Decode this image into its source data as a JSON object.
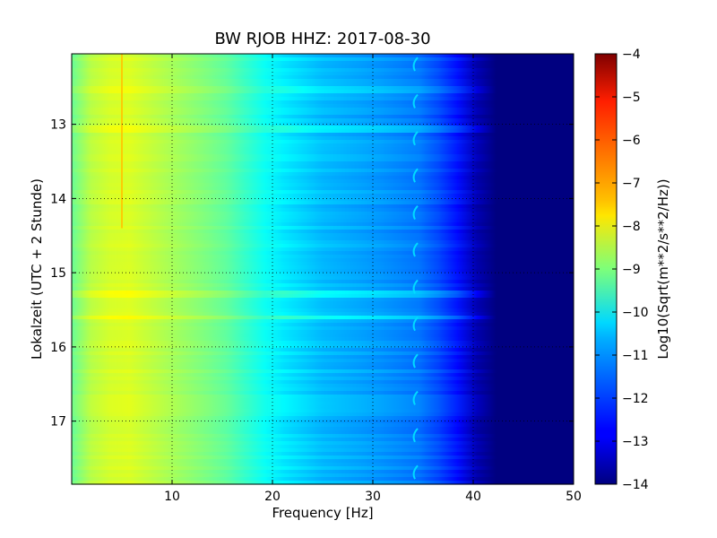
{
  "chart_data": {
    "type": "heatmap",
    "title": "BW RJOB HHZ: 2017-08-30",
    "xlabel": "Frequency [Hz]",
    "ylabel": "Lokalzeit (UTC + 2 Stunde)",
    "xlim": [
      0,
      50
    ],
    "ylim": [
      12.05,
      17.85
    ],
    "y_inverted": true,
    "x_ticks": [
      10,
      20,
      30,
      40,
      50
    ],
    "y_ticks": [
      13,
      14,
      15,
      16,
      17
    ],
    "grid": true,
    "colormap": "jet",
    "colorbar": {
      "label": "Log10(Sqrt(m**2/s**2/Hz))",
      "range": [
        -14,
        -4
      ],
      "ticks": [
        -4,
        -5,
        -6,
        -7,
        -8,
        -9,
        -10,
        -11,
        -12,
        -13,
        -14
      ]
    },
    "psd_profile": {
      "frequency_hz": [
        0,
        2,
        5,
        10,
        15,
        20,
        25,
        30,
        35,
        38,
        40,
        41,
        50
      ],
      "log10_amplitude": [
        -9.2,
        -8.4,
        -8.0,
        -8.6,
        -9.2,
        -10.3,
        -10.9,
        -11.2,
        -11.6,
        -12.4,
        -13.2,
        -14.0,
        -14.0
      ]
    },
    "features": [
      {
        "type": "narrowband_line",
        "frequency_hz": 5.0,
        "time_start": 12.05,
        "time_end": 14.4,
        "log10_amplitude": -7.2
      },
      {
        "type": "broadband_burst",
        "time": 15.25,
        "log10_amplitude_offset": 0.6
      },
      {
        "type": "broadband_burst",
        "time": 15.58,
        "log10_amplitude_offset": 0.8
      },
      {
        "type": "broadband_burst",
        "time": 12.5,
        "log10_amplitude_offset": 0.4
      },
      {
        "type": "broadband_burst",
        "time": 13.05,
        "log10_amplitude_offset": 0.4
      },
      {
        "type": "periodic_tonal",
        "frequency_hz": 34.2,
        "period_hours": 0.5,
        "log10_amplitude": -10.6
      }
    ]
  }
}
